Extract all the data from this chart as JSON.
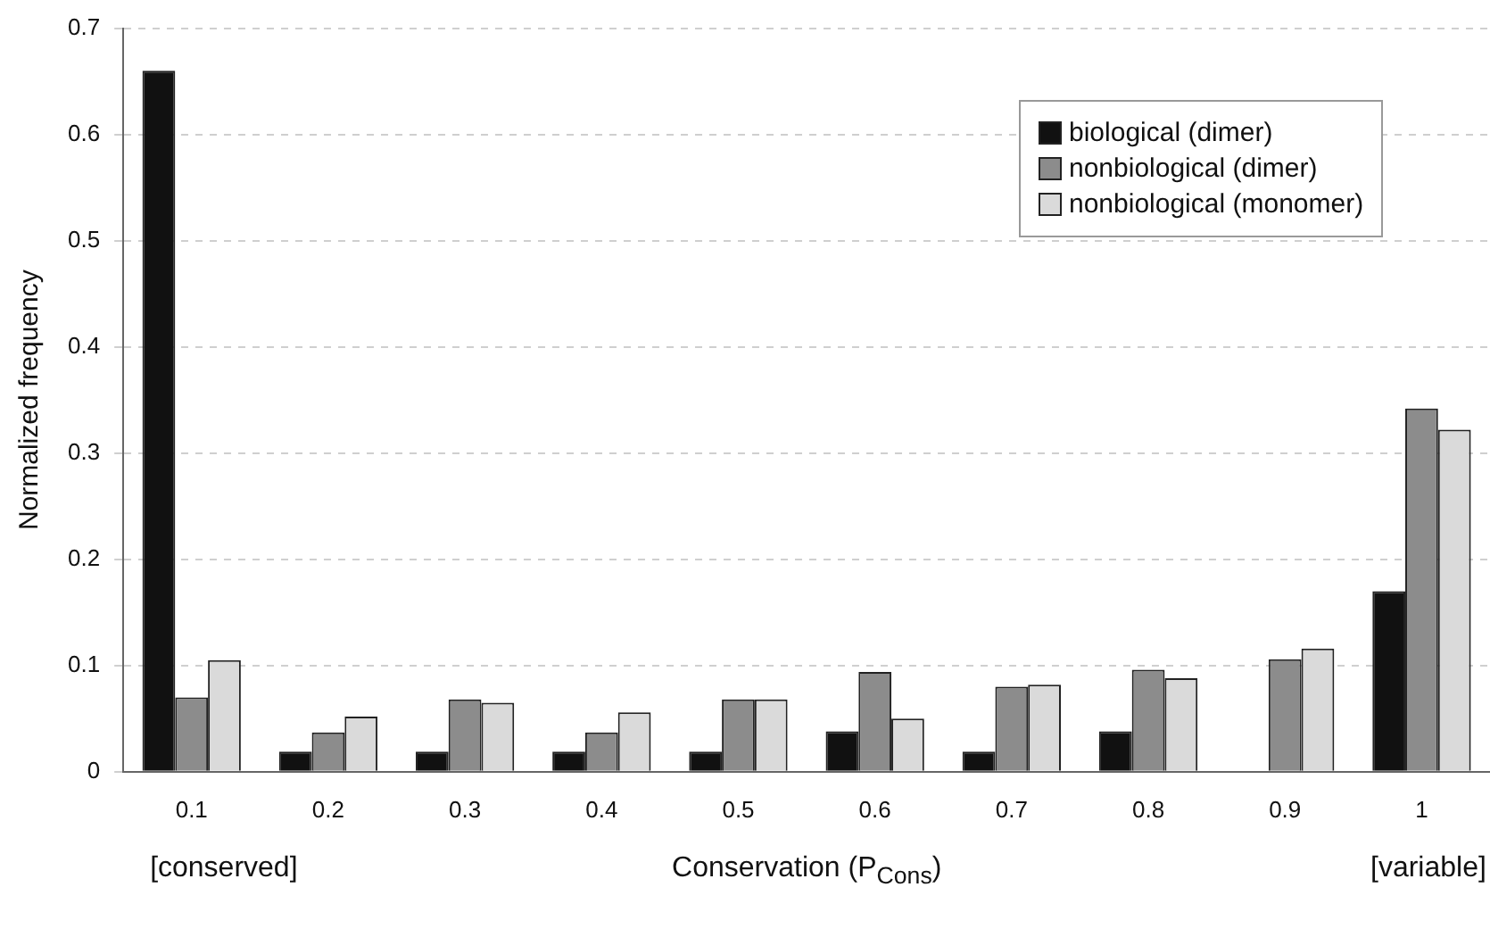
{
  "chart_data": {
    "type": "bar",
    "xlabel": "Conservation (P$_{Cons}$)",
    "ylabel": "Normalized frequency",
    "categories": [
      "0.1",
      "0.2",
      "0.3",
      "0.4",
      "0.5",
      "0.6",
      "0.7",
      "0.8",
      "0.9",
      "1"
    ],
    "series": [
      {
        "name": "biological (dimer)",
        "color": "#111111",
        "values": [
          0.66,
          0.019,
          0.019,
          0.019,
          0.019,
          0.038,
          0.019,
          0.038,
          0,
          0.17
        ]
      },
      {
        "name": "nonbiological (dimer)",
        "color": "#8c8c8c",
        "values": [
          0.07,
          0.037,
          0.068,
          0.037,
          0.068,
          0.094,
          0.08,
          0.096,
          0.106,
          0.342
        ]
      },
      {
        "name": "nonbiological (monomer)",
        "color": "#dadada",
        "values": [
          0.105,
          0.052,
          0.065,
          0.056,
          0.068,
          0.05,
          0.082,
          0.088,
          0.116,
          0.322
        ]
      }
    ],
    "ylim": [
      0,
      0.7
    ],
    "yticks": [
      0,
      0.1,
      0.2,
      0.3,
      0.4,
      0.5,
      0.6,
      0.7
    ],
    "grid": "y",
    "legend": "top right",
    "annotations": [
      "[conserved]",
      "[variable]"
    ]
  }
}
